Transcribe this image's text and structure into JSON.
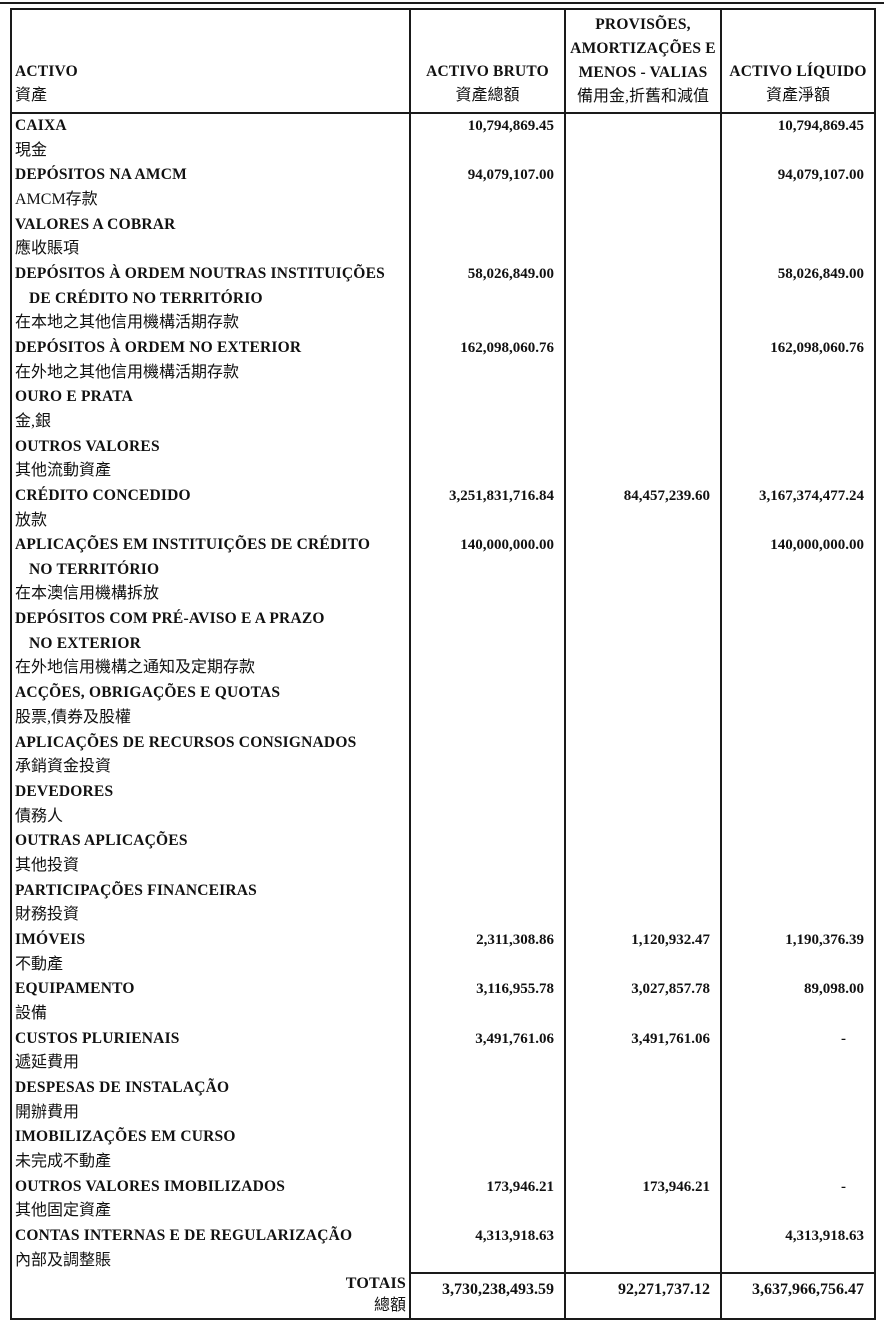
{
  "header": {
    "col_asset": {
      "pt": "ACTIVO",
      "zh": "資產"
    },
    "col_gross": {
      "pt": "ACTIVO BRUTO",
      "zh": "資產總額"
    },
    "col_provisions": {
      "pt_lines": [
        "PROVISÕES,",
        "AMORTIZAÇÕES E",
        "MENOS - VALIAS"
      ],
      "zh": "備用金,折舊和減值"
    },
    "col_net": {
      "pt": "ACTIVO LÍQUIDO",
      "zh": "資產淨額"
    }
  },
  "rows": [
    {
      "pt_lines": [
        "CAIXA"
      ],
      "zh": "現金",
      "gross": "10,794,869.45",
      "provisions": "",
      "net": "10,794,869.45"
    },
    {
      "pt_lines": [
        "DEPÓSITOS NA AMCM"
      ],
      "zh": "AMCM存款",
      "gross": "94,079,107.00",
      "provisions": "",
      "net": "94,079,107.00"
    },
    {
      "pt_lines": [
        "VALORES A COBRAR"
      ],
      "zh": "應收賬項",
      "gross": "",
      "provisions": "",
      "net": ""
    },
    {
      "pt_lines": [
        "DEPÓSITOS À ORDEM NOUTRAS INSTITUIÇÕES",
        "DE CRÉDITO NO TERRITÓRIO"
      ],
      "zh": "在本地之其他信用機構活期存款",
      "gross": "58,026,849.00",
      "provisions": "",
      "net": "58,026,849.00"
    },
    {
      "pt_lines": [
        "DEPÓSITOS À ORDEM NO EXTERIOR"
      ],
      "zh": "在外地之其他信用機構活期存款",
      "gross": "162,098,060.76",
      "provisions": "",
      "net": "162,098,060.76"
    },
    {
      "pt_lines": [
        "OURO E PRATA"
      ],
      "zh": "金,銀",
      "gross": "",
      "provisions": "",
      "net": ""
    },
    {
      "pt_lines": [
        "OUTROS VALORES"
      ],
      "zh": "其他流動資產",
      "gross": "",
      "provisions": "",
      "net": ""
    },
    {
      "pt_lines": [
        "CRÉDITO CONCEDIDO"
      ],
      "zh": "放款",
      "gross": "3,251,831,716.84",
      "provisions": "84,457,239.60",
      "net": "3,167,374,477.24"
    },
    {
      "pt_lines": [
        "APLICAÇÕES EM INSTITUIÇÕES DE CRÉDITO",
        "NO TERRITÓRIO"
      ],
      "zh": "在本澳信用機構拆放",
      "gross": "140,000,000.00",
      "provisions": "",
      "net": "140,000,000.00"
    },
    {
      "pt_lines": [
        "DEPÓSITOS COM PRÉ-AVISO E A PRAZO",
        "NO EXTERIOR"
      ],
      "zh": "在外地信用機構之通知及定期存款",
      "gross": "",
      "provisions": "",
      "net": ""
    },
    {
      "pt_lines": [
        "ACÇÕES, OBRIGAÇÕES E QUOTAS"
      ],
      "zh": "股票,債券及股權",
      "gross": "",
      "provisions": "",
      "net": ""
    },
    {
      "pt_lines": [
        "APLICAÇÕES DE RECURSOS CONSIGNADOS"
      ],
      "zh": "承銷資金投資",
      "gross": "",
      "provisions": "",
      "net": ""
    },
    {
      "pt_lines": [
        "DEVEDORES"
      ],
      "zh": "債務人",
      "gross": "",
      "provisions": "",
      "net": ""
    },
    {
      "pt_lines": [
        "OUTRAS APLICAÇÕES"
      ],
      "zh": "其他投資",
      "gross": "",
      "provisions": "",
      "net": ""
    },
    {
      "pt_lines": [
        "PARTICIPAÇÕES FINANCEIRAS"
      ],
      "zh": "財務投資",
      "gross": "",
      "provisions": "",
      "net": ""
    },
    {
      "pt_lines": [
        "IMÓVEIS"
      ],
      "zh": "不動產",
      "gross": "2,311,308.86",
      "provisions": "1,120,932.47",
      "net": "1,190,376.39"
    },
    {
      "pt_lines": [
        "EQUIPAMENTO"
      ],
      "zh": "設備",
      "gross": "3,116,955.78",
      "provisions": "3,027,857.78",
      "net": "89,098.00"
    },
    {
      "pt_lines": [
        "CUSTOS PLURIENAIS"
      ],
      "zh": "遞延費用",
      "gross": "3,491,761.06",
      "provisions": "3,491,761.06",
      "net": "-"
    },
    {
      "pt_lines": [
        "DESPESAS DE INSTALAÇÃO"
      ],
      "zh": "開辦費用",
      "gross": "",
      "provisions": "",
      "net": ""
    },
    {
      "pt_lines": [
        "IMOBILIZAÇÕES EM CURSO"
      ],
      "zh": "未完成不動產",
      "gross": "",
      "provisions": "",
      "net": ""
    },
    {
      "pt_lines": [
        "OUTROS VALORES IMOBILIZADOS"
      ],
      "zh": "其他固定資產",
      "gross": "173,946.21",
      "provisions": "173,946.21",
      "net": "-"
    },
    {
      "pt_lines": [
        "CONTAS INTERNAS E DE REGULARIZAÇÃO"
      ],
      "zh": "內部及調整賬",
      "gross": "4,313,918.63",
      "provisions": "",
      "net": "4,313,918.63"
    }
  ],
  "totals": {
    "pt": "TOTAIS",
    "zh": "總額",
    "gross": "3,730,238,493.59",
    "provisions": "92,271,737.12",
    "net": "3,637,966,756.47"
  }
}
